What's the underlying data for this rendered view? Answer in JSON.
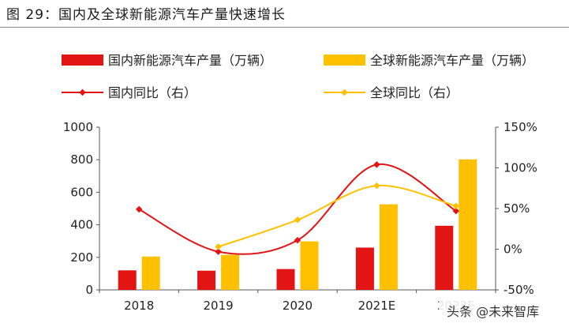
{
  "figure_title": "图 29：国内及全球新能源汽车产量快速增长",
  "watermark": "头条 @未来智库",
  "chart_data": {
    "type": "bar",
    "categories": [
      "2018",
      "2019",
      "2020",
      "2021E",
      "2022E"
    ],
    "series": [
      {
        "name": "国内新能源汽车产量（万辆）",
        "kind": "bar",
        "axis": "left",
        "color": "#e31414",
        "values": [
          120,
          118,
          128,
          260,
          394
        ]
      },
      {
        "name": "全球新能源汽车产量（万辆）",
        "kind": "bar",
        "axis": "left",
        "color": "#ffc000",
        "values": [
          205,
          215,
          298,
          526,
          802
        ]
      },
      {
        "name": "国内同比（右）",
        "kind": "line",
        "axis": "right",
        "color": "#e31414",
        "values": [
          0.49,
          -0.03,
          0.11,
          1.04,
          0.47
        ]
      },
      {
        "name": "全球同比（右）",
        "kind": "line",
        "axis": "right",
        "color": "#ffc000",
        "values": [
          null,
          0.03,
          0.36,
          0.78,
          0.53
        ]
      }
    ],
    "y_left": {
      "min": 0,
      "max": 1000,
      "ticks": [
        "0",
        "200",
        "400",
        "600",
        "800",
        "1000"
      ]
    },
    "y_right": {
      "min": -0.5,
      "max": 1.5,
      "ticks": [
        "-50%",
        "0%",
        "50%",
        "100%",
        "150%"
      ]
    },
    "grid": false,
    "legend_position": "top"
  }
}
